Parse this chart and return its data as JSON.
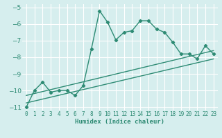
{
  "xlabel": "Humidex (Indice chaleur)",
  "background_color": "#d6eeee",
  "line_color": "#2e8b74",
  "grid_color": "#ffffff",
  "xlim": [
    -0.5,
    23.5
  ],
  "ylim": [
    -11.2,
    -4.8
  ],
  "xticks": [
    0,
    1,
    2,
    3,
    4,
    5,
    6,
    7,
    8,
    9,
    10,
    11,
    12,
    13,
    14,
    15,
    16,
    17,
    18,
    19,
    20,
    21,
    22,
    23
  ],
  "yticks": [
    -11,
    -10,
    -9,
    -8,
    -7,
    -6,
    -5
  ],
  "line1_x": [
    0,
    1,
    2,
    3,
    4,
    5,
    6,
    7,
    8,
    9,
    10,
    11,
    12,
    13,
    14,
    15,
    16,
    17,
    18,
    19,
    20,
    21,
    22,
    23
  ],
  "line1_y": [
    -11.0,
    -10.0,
    -9.5,
    -10.1,
    -10.0,
    -10.0,
    -10.3,
    -9.7,
    -7.5,
    -5.2,
    -5.9,
    -6.95,
    -6.5,
    -6.4,
    -5.8,
    -5.8,
    -6.3,
    -6.5,
    -7.1,
    -7.8,
    -7.8,
    -8.1,
    -7.3,
    -7.8
  ],
  "line2_x": [
    0,
    23
  ],
  "line2_y": [
    -10.3,
    -7.6
  ],
  "line3_x": [
    0,
    23
  ],
  "line3_y": [
    -10.75,
    -8.1
  ]
}
